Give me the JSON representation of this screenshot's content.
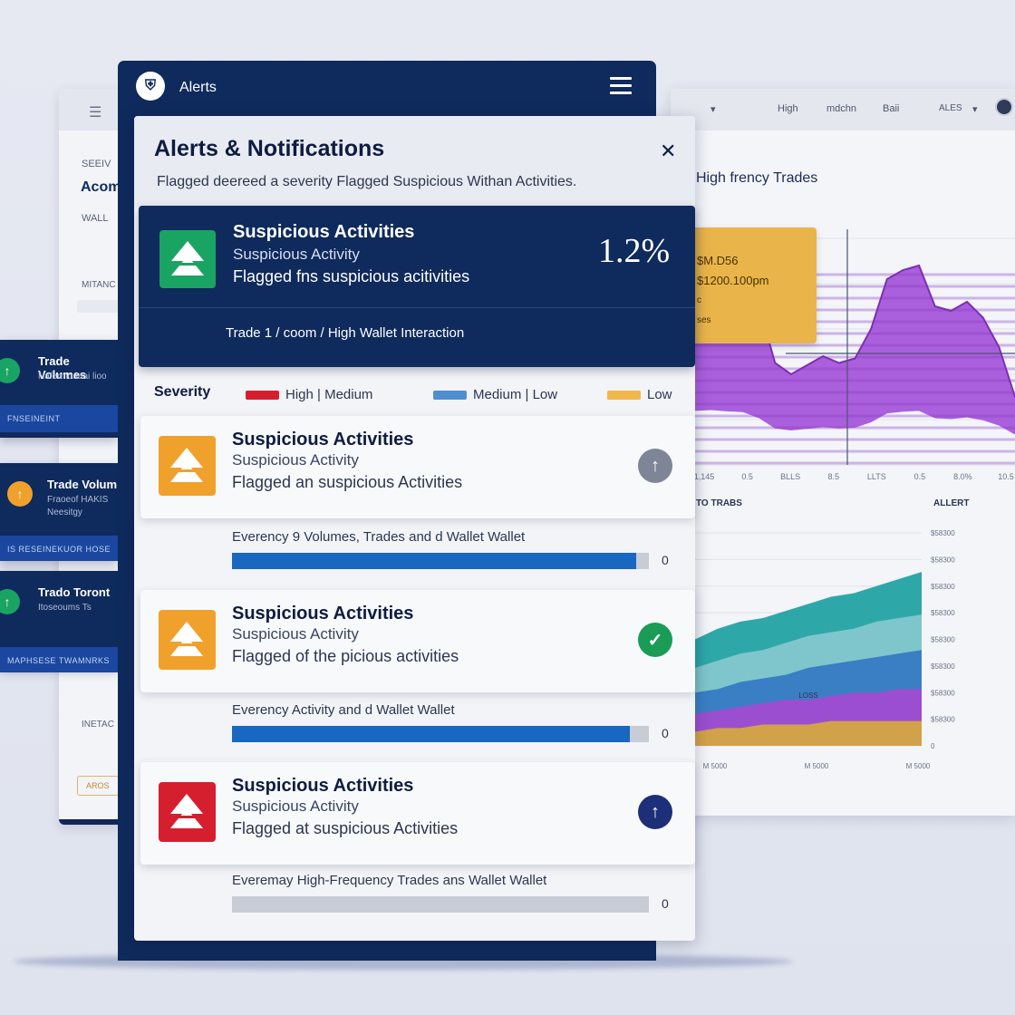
{
  "colors": {
    "navy": "#0f2a5c",
    "green": "#1aa464",
    "orange": "#f0a12c",
    "red": "#d51f2f",
    "blue": "#1867c0",
    "purple": "#a24fd8"
  },
  "header": {
    "app_title": "Alerts",
    "logo_icon": "shield-logo-icon",
    "menu_icon": "hamburger-menu-icon"
  },
  "panel": {
    "title": "Alerts & Notifications",
    "description": "Flagged deereed a severity Flagged Suspicious Withan Activities."
  },
  "featured": {
    "title": "Suspicious Activities",
    "subtitle": "Suspicious Activity",
    "detail": "Flagged fns suspicious acitivities",
    "percent": "1.2%",
    "footer": "Trade 1 / coom / High Wallet Interaction",
    "icon": "up-arrow-icon"
  },
  "severity": {
    "label": "Severity",
    "legend": [
      {
        "label": "High | Medium",
        "color": "#d51f2f"
      },
      {
        "label": "Medium | Low",
        "color": "#4f8fcf"
      },
      {
        "label": "Low",
        "color": "#f2b84a"
      }
    ]
  },
  "alerts": [
    {
      "title": "Suspicious Activities",
      "subtitle": "Suspicious Activity",
      "detail": "Flagged an suspicious Activities",
      "color": "#f0a12c",
      "status_icon": "arrow-up-circle-icon",
      "status_color": "#7d8596",
      "status_glyph": "↑"
    },
    {
      "title": "Suspicious Activities",
      "subtitle": "Suspicious Activity",
      "detail": "Flagged of the picious activities",
      "color": "#f0a12c",
      "status_icon": "check-circle-icon",
      "status_color": "#1a9b56",
      "status_glyph": "✓"
    },
    {
      "title": "Suspicious Activities",
      "subtitle": "Suspicious Activity",
      "detail": "Flagged at suspicious Activities",
      "color": "#d51f2f",
      "status_icon": "arrow-up-circle-icon",
      "status_color": "#1d2f78",
      "status_glyph": "↑"
    }
  ],
  "progress": [
    {
      "label": "Everency 9 Volumes, Trades and d Wallet Wallet",
      "value": 0.97,
      "count": "0",
      "color": "#1867c0"
    },
    {
      "label": "Everency Activity  and d Wallet Wallet",
      "value": 0.955,
      "count": "0",
      "color": "#1867c0"
    },
    {
      "label": "Everemay High-Frequency Trades ans Wallet Wallet",
      "value": 0.0,
      "count": "0",
      "color": "#bcc2cc"
    }
  ],
  "left_dashboard": {
    "section1": "SEEIV",
    "heading": "Acom",
    "section2": "WALL",
    "section3": "MITANC",
    "section4": "INETAC",
    "button": "AROS",
    "cards": [
      {
        "title": "Trade Volumes",
        "sub": "Nafermoaaai lioo",
        "strip": "FNSEINEINT",
        "icon_color": "#1aa464",
        "icon": "up-arrow-icon"
      },
      {
        "title": "Trade Volum",
        "sub": "Fraoeof HAKIS Neesitgy",
        "strip": "IS RESEINEKUOR HOSE",
        "icon_color": "#f0a12c",
        "icon": "up-arrow-icon"
      },
      {
        "title": "Trado Toront",
        "sub": "Itoseoums Ts",
        "strip": "MAPHSESE TWAMNRKS",
        "icon_color": "#1aa464",
        "icon": "up-arrow-icon"
      }
    ]
  },
  "right_dashboard": {
    "topbar": [
      "High",
      "mdchn",
      "Baii",
      "ALES"
    ],
    "chart_title": "High frency Trades",
    "card_lines": [
      "$M.D56",
      "$1200.100pm",
      "c",
      "ses"
    ],
    "label_left": "TO TRABS",
    "label_right": "ALLERT",
    "area_label": "LOSS"
  },
  "chart_data": [
    {
      "type": "area",
      "title": "High frency Trades",
      "x_ticks": [
        "1,145",
        "0.5",
        "BLLS",
        "8.5",
        "LLTS",
        "0.5",
        "8.0%",
        "10.5"
      ],
      "series": [
        {
          "values": [
            88,
            90,
            87,
            85,
            70,
            45,
            40,
            44,
            48,
            45,
            47,
            60,
            82,
            86,
            88,
            70,
            68,
            72,
            65,
            52,
            30
          ]
        }
      ],
      "ylim": [
        0,
        100
      ]
    },
    {
      "type": "area",
      "x_ticks": [
        "M 5000",
        "M 5000",
        "M 5000"
      ],
      "y_ticks": [
        "$58300",
        "$58300",
        "$58300",
        "$58300",
        "$58300",
        "$58300",
        "$58300",
        "$58300",
        "0"
      ],
      "series": [
        {
          "values": [
            30,
            33,
            35,
            36,
            38,
            40,
            42,
            43,
            45,
            47,
            49
          ]
        },
        {
          "values": [
            22,
            24,
            26,
            27,
            29,
            31,
            32,
            33,
            35,
            36,
            37
          ]
        },
        {
          "values": [
            15,
            16,
            18,
            19,
            20,
            22,
            23,
            24,
            25,
            26,
            27
          ]
        },
        {
          "values": [
            9,
            10,
            11,
            12,
            13,
            13,
            14,
            15,
            15,
            16,
            16
          ]
        },
        {
          "values": [
            4,
            5,
            5,
            6,
            6,
            6,
            7,
            7,
            7,
            7,
            7
          ]
        }
      ]
    }
  ]
}
